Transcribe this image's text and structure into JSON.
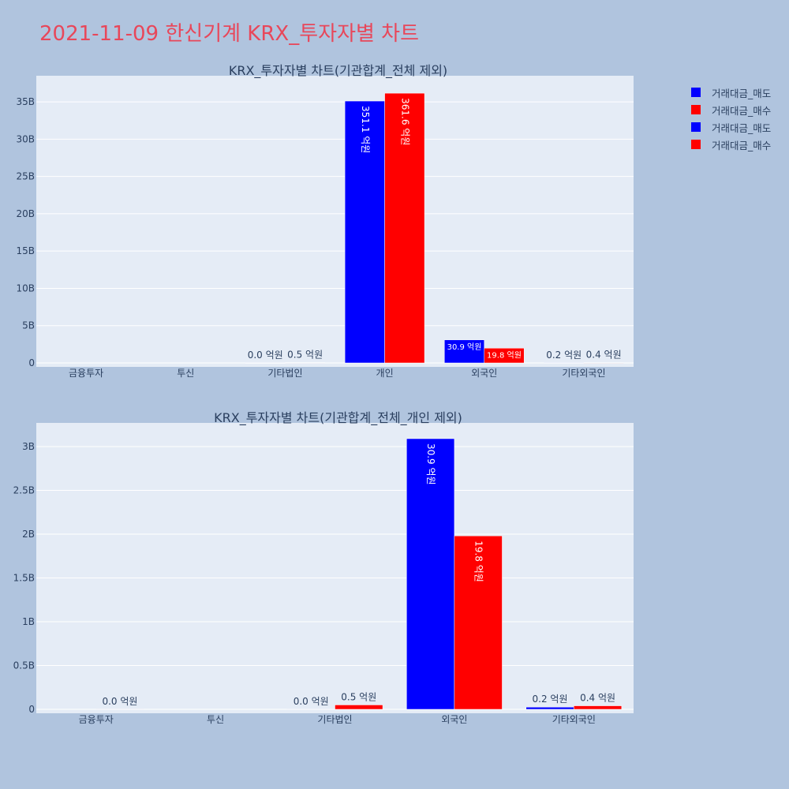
{
  "title": "2021-11-09 한신기계 KRX_투자자별 차트",
  "legend": [
    {
      "label": "거래대금_매도",
      "color": "#0000ff"
    },
    {
      "label": "거래대금_매수",
      "color": "#ff0000"
    },
    {
      "label": "거래대금_매도",
      "color": "#0000ff"
    },
    {
      "label": "거래대금_매수",
      "color": "#ff0000"
    }
  ],
  "chart_data": [
    {
      "type": "bar",
      "title": "KRX_투자자별 차트(기관합계_전체 제외)",
      "categories": [
        "금융투자",
        "투신",
        "기타법인",
        "개인",
        "외국인",
        "기타외국인"
      ],
      "series": [
        {
          "name": "거래대금_매도",
          "color": "#0000ff",
          "values": [
            0,
            0,
            0.002,
            35.11,
            3.09,
            0.02
          ],
          "labels": [
            "",
            "",
            "0.0 억원",
            "351.1 억원",
            "30.9 억원",
            "0.2 억원"
          ]
        },
        {
          "name": "거래대금_매수",
          "color": "#ff0000",
          "values": [
            0,
            0,
            0.05,
            36.16,
            1.98,
            0.04
          ],
          "labels": [
            "",
            "",
            "0.5 억원",
            "361.6 억원",
            "19.8 억원",
            "0.4 억원"
          ]
        }
      ],
      "ylim": [
        0,
        38.5
      ],
      "yticks": [
        0,
        5,
        10,
        15,
        20,
        25,
        30,
        35
      ],
      "ytick_labels": [
        "0",
        "5B",
        "10B",
        "15B",
        "20B",
        "25B",
        "30B",
        "35B"
      ],
      "grid": true
    },
    {
      "type": "bar",
      "title": "KRX_투자자별 차트(기관합계_전체_개인 제외)",
      "categories": [
        "금융투자",
        "투신",
        "기타법인",
        "외국인",
        "기타외국인"
      ],
      "series": [
        {
          "name": "거래대금_매도",
          "color": "#0000ff",
          "values": [
            0,
            0,
            0.002,
            3.09,
            0.025
          ],
          "labels": [
            "",
            "",
            "0.0 억원",
            "30.9 억원",
            "0.2 억원"
          ]
        },
        {
          "name": "거래대금_매수",
          "color": "#ff0000",
          "values": [
            0.002,
            0,
            0.05,
            1.98,
            0.04
          ],
          "labels": [
            "0.0 억원",
            "",
            "0.5 억원",
            "19.8 억원",
            "0.4 억원"
          ]
        }
      ],
      "ylim": [
        0,
        3.27
      ],
      "yticks": [
        0,
        0.5,
        1,
        1.5,
        2,
        2.5,
        3
      ],
      "ytick_labels": [
        "0",
        "0.5B",
        "1B",
        "1.5B",
        "2B",
        "2.5B",
        "3B"
      ],
      "grid": true
    }
  ]
}
